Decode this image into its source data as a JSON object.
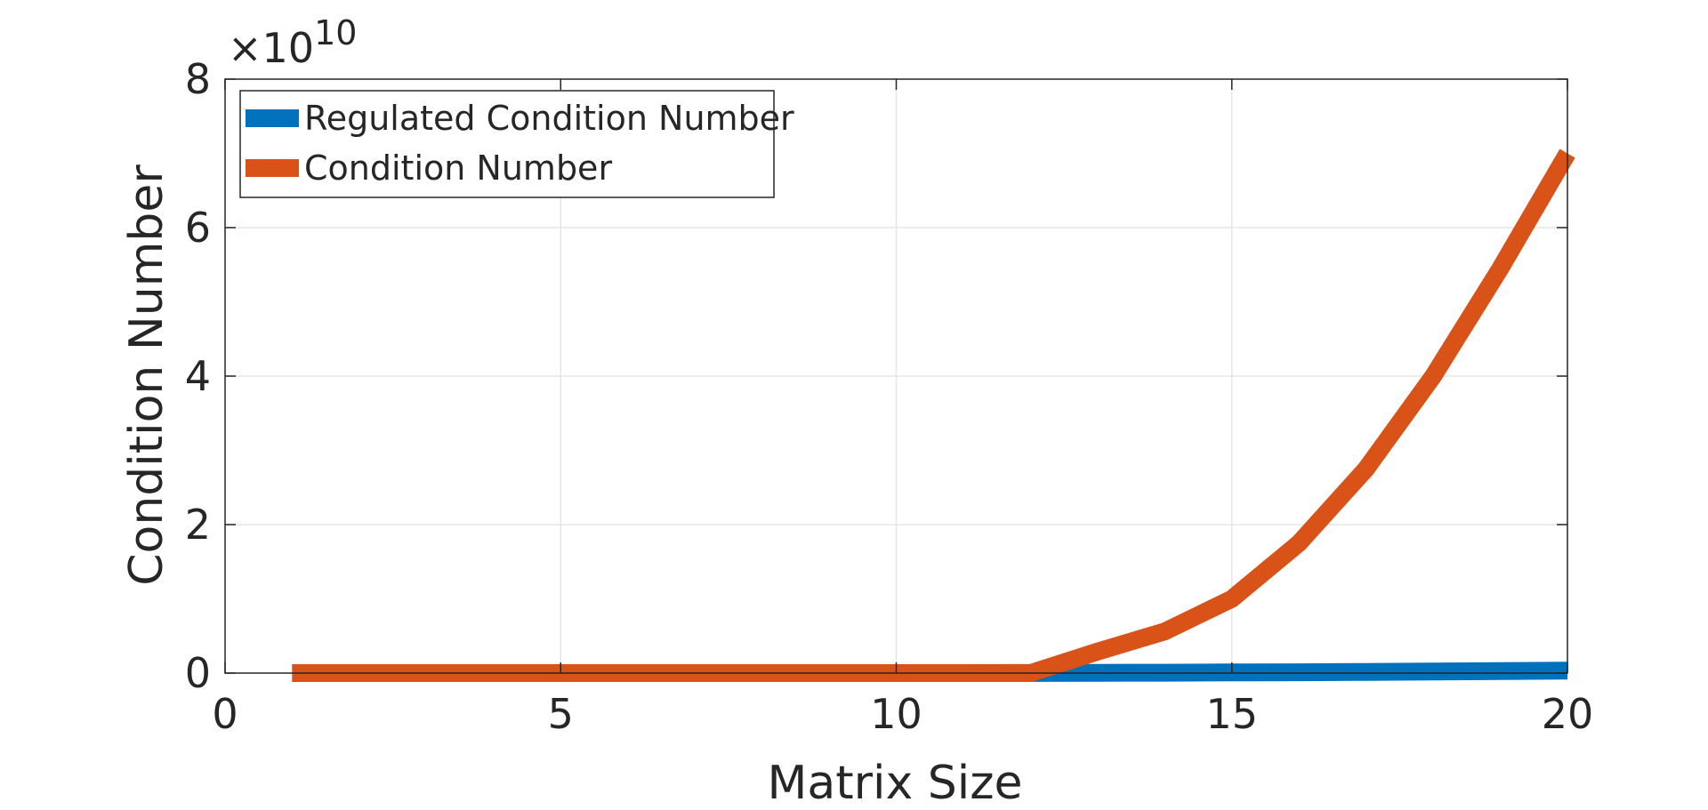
{
  "chart_data": {
    "type": "line",
    "xlabel": "Matrix Size",
    "ylabel": "Condition Number",
    "xlim": [
      0,
      20
    ],
    "ylim": [
      0,
      80000000000
    ],
    "xticks": [
      0,
      5,
      10,
      15,
      20
    ],
    "yticks": [
      0,
      2,
      4,
      6,
      8
    ],
    "y_exponent_label": "×10",
    "y_exponent_power": "10",
    "y_multiplier": 10000000000,
    "grid": true,
    "legend_position": "top-left",
    "x": [
      1,
      2,
      3,
      4,
      5,
      6,
      7,
      8,
      9,
      10,
      11,
      12,
      13,
      14,
      15,
      16,
      17,
      18,
      19,
      20
    ],
    "series": [
      {
        "name": "Regulated Condition Number",
        "color": "#0072BD",
        "values": [
          0,
          0,
          0,
          0,
          0,
          0,
          0,
          0,
          0,
          0,
          0,
          10000000,
          30000000,
          50000000,
          80000000,
          110000000,
          150000000,
          200000000,
          260000000,
          330000000
        ]
      },
      {
        "name": "Condition Number",
        "color": "#D95319",
        "values": [
          0,
          0,
          0,
          0,
          0,
          0,
          0,
          0,
          0,
          0,
          0,
          0,
          2900000000,
          5600000000,
          10000000000,
          17500000000,
          27500000000,
          40000000000,
          54500000000,
          70000000000
        ]
      }
    ]
  }
}
